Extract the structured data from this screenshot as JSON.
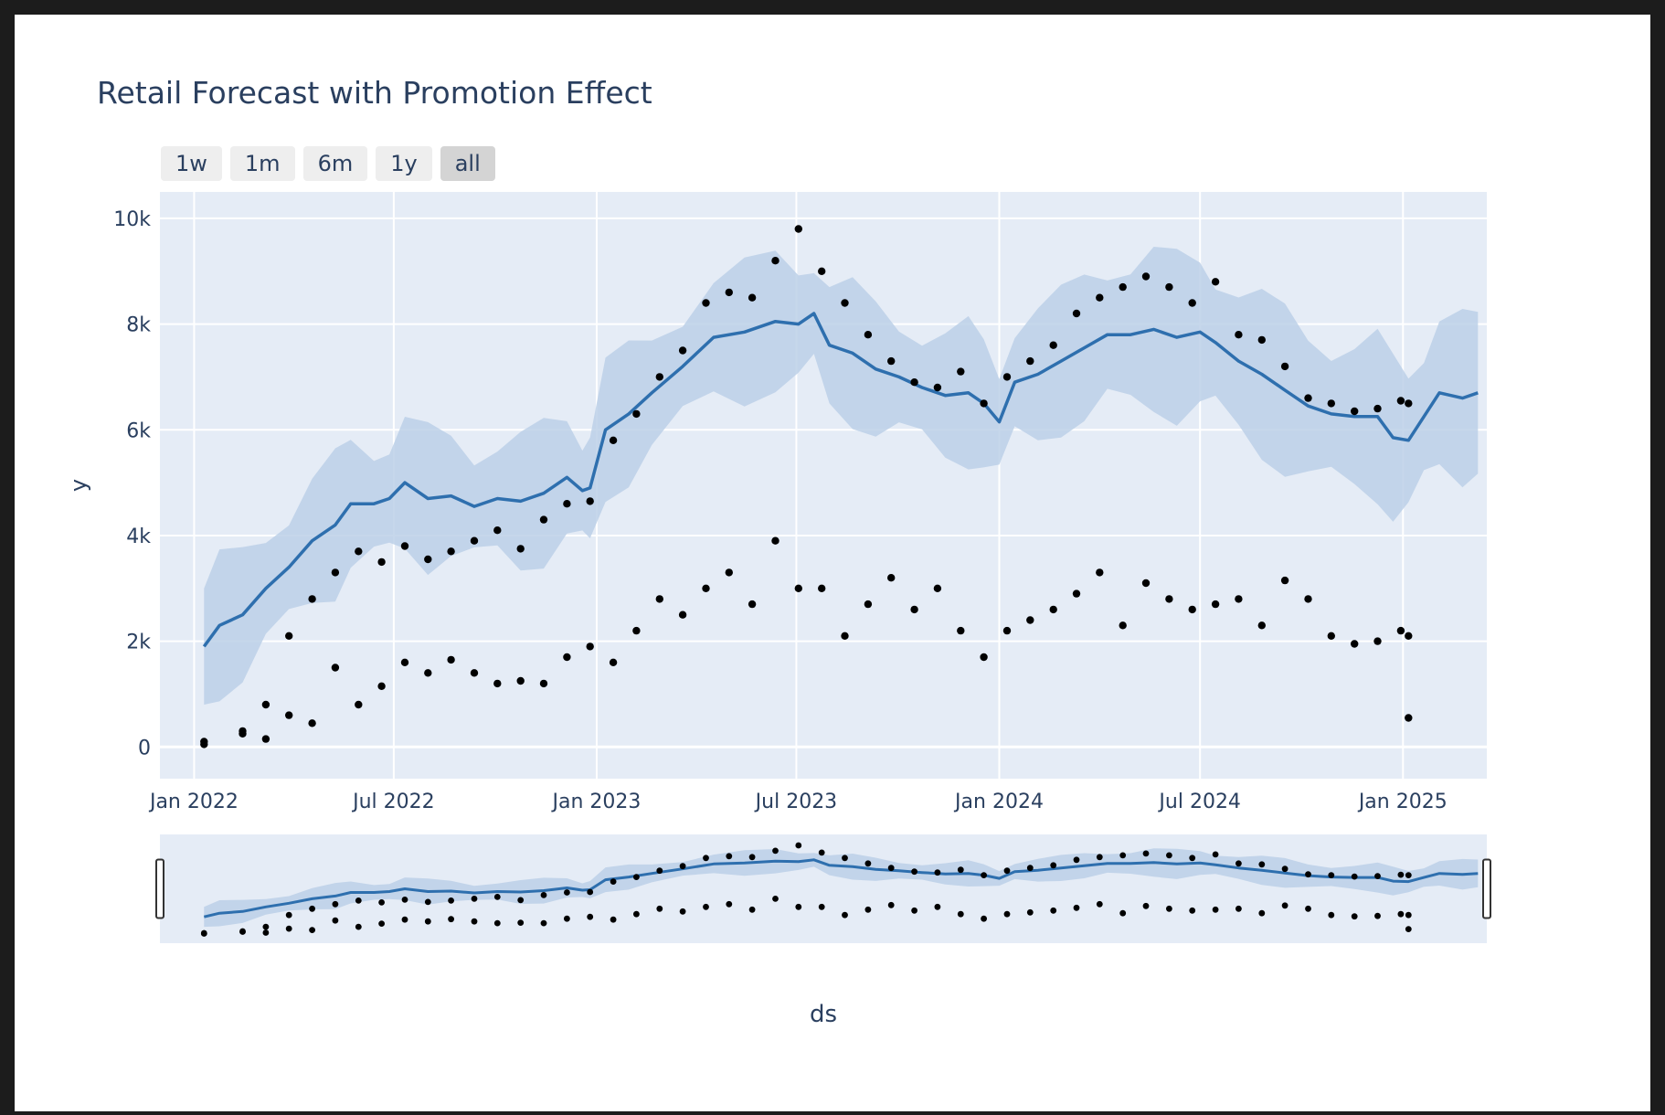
{
  "chart_data": {
    "type": "scatter",
    "title": "Retail Forecast with Promotion Effect",
    "xlabel": "ds",
    "ylabel": "y",
    "xlim": [
      "2021-12-01",
      "2025-03-18"
    ],
    "ylim": [
      -600,
      10500
    ],
    "x_ticks": [
      "2022-01-01",
      "2022-07-01",
      "2023-01-01",
      "2023-07-01",
      "2024-01-01",
      "2024-07-01",
      "2025-01-01"
    ],
    "x_tick_labels": [
      "Jan 2022",
      "Jul 2022",
      "Jan 2023",
      "Jul 2023",
      "Jan 2024",
      "Jul 2024",
      "Jan 2025"
    ],
    "y_ticks": [
      0,
      2000,
      4000,
      6000,
      8000,
      10000
    ],
    "y_tick_labels": [
      "0",
      "2k",
      "4k",
      "6k",
      "8k",
      "10k"
    ],
    "grid": true,
    "range_selector": [
      "1w",
      "1m",
      "6m",
      "1y",
      "all"
    ],
    "range_selector_active": "all",
    "range_slider": true,
    "colors": {
      "plot_bg": "#e5ecf6",
      "forecast_line": "#2e6fae",
      "uncertainty_band": "#bcd0e7",
      "actual_points": "#000000",
      "text": "#2a3f5f"
    },
    "series": [
      {
        "type": "line",
        "x": [
          "2022-01-10",
          "2022-01-24",
          "2022-02-14",
          "2022-03-07",
          "2022-03-28",
          "2022-04-18",
          "2022-05-09",
          "2022-05-23",
          "2022-06-13",
          "2022-06-27",
          "2022-07-11",
          "2022-08-01",
          "2022-08-22",
          "2022-09-12",
          "2022-10-03",
          "2022-10-24",
          "2022-11-14",
          "2022-12-05",
          "2022-12-19",
          "2022-12-26",
          "2023-01-09",
          "2023-01-30",
          "2023-02-20",
          "2023-03-20",
          "2023-04-17",
          "2023-05-15",
          "2023-06-12",
          "2023-07-03",
          "2023-07-17",
          "2023-07-31",
          "2023-08-21",
          "2023-09-11",
          "2023-10-02",
          "2023-10-23",
          "2023-11-13",
          "2023-12-04",
          "2023-12-18",
          "2024-01-01",
          "2024-01-15",
          "2024-02-05",
          "2024-02-26",
          "2024-03-18",
          "2024-04-08",
          "2024-04-29",
          "2024-05-20",
          "2024-06-10",
          "2024-07-01",
          "2024-07-15",
          "2024-08-05",
          "2024-08-26",
          "2024-09-16",
          "2024-10-07",
          "2024-10-28",
          "2024-11-18",
          "2024-12-09",
          "2024-12-23",
          "2025-01-06",
          "2025-01-20",
          "2025-02-03",
          "2025-02-24",
          "2025-03-10"
        ],
        "y": [
          1900,
          2300,
          2500,
          3000,
          3400,
          3900,
          4200,
          4600,
          4600,
          4700,
          5000,
          4700,
          4750,
          4550,
          4700,
          4650,
          4800,
          5100,
          4850,
          4900,
          6000,
          6300,
          6700,
          7200,
          7750,
          7850,
          8050,
          8000,
          8200,
          7600,
          7450,
          7150,
          7000,
          6800,
          6650,
          6700,
          6500,
          6150,
          6900,
          7050,
          7300,
          7550,
          7800,
          7800,
          7900,
          7750,
          7850,
          7650,
          7300,
          7050,
          6750,
          6450,
          6300,
          6250,
          6250,
          5850,
          5800,
          6250,
          6700,
          6600,
          6700
        ]
      },
      {
        "type": "scatter",
        "x": [
          "2022-01-10",
          "2022-02-14",
          "2022-03-07",
          "2022-03-28",
          "2022-04-18",
          "2022-05-09",
          "2022-05-30",
          "2022-06-20",
          "2022-07-11",
          "2022-08-01",
          "2022-08-22",
          "2022-09-12",
          "2022-10-03",
          "2022-10-24",
          "2022-11-14",
          "2022-12-05",
          "2022-12-26",
          "2023-01-16",
          "2023-02-06",
          "2023-02-27",
          "2023-03-20",
          "2023-04-10",
          "2023-05-01",
          "2023-05-22",
          "2023-06-12",
          "2023-07-03",
          "2023-07-24",
          "2023-08-14",
          "2023-09-04",
          "2023-09-25",
          "2023-10-16",
          "2023-11-06",
          "2023-11-27",
          "2023-12-18",
          "2024-01-08",
          "2024-01-29",
          "2024-02-19",
          "2024-03-11",
          "2024-04-01",
          "2024-04-22",
          "2024-05-13",
          "2024-06-03",
          "2024-06-24",
          "2024-07-15",
          "2024-08-05",
          "2024-08-26",
          "2024-09-16",
          "2024-10-07",
          "2024-10-28",
          "2024-11-18",
          "2024-12-09",
          "2024-12-30",
          "2025-01-06"
        ],
        "y": [
          100,
          300,
          800,
          2100,
          2800,
          3300,
          3700,
          3500,
          3800,
          3550,
          3700,
          3900,
          4100,
          3750,
          4300,
          4600,
          4650,
          5800,
          6300,
          7000,
          7500,
          8400,
          8600,
          8500,
          9200,
          9800,
          9000,
          8400,
          7800,
          7300,
          6900,
          6800,
          7100,
          6500,
          7000,
          7300,
          7600,
          8200,
          8500,
          8700,
          8900,
          8700,
          8400,
          8800,
          7800,
          7700,
          7200,
          6600,
          6500,
          6350,
          6400,
          6550,
          6500
        ]
      },
      {
        "type": "scatter",
        "x": [
          "2022-01-10",
          "2022-02-14",
          "2022-03-07",
          "2022-03-28",
          "2022-04-18",
          "2022-05-09",
          "2022-05-30",
          "2022-06-20",
          "2022-07-11",
          "2022-08-01",
          "2022-08-22",
          "2022-09-12",
          "2022-10-03",
          "2022-10-24",
          "2022-11-14",
          "2022-12-05",
          "2022-12-26",
          "2023-01-16",
          "2023-02-06",
          "2023-02-27",
          "2023-03-20",
          "2023-04-10",
          "2023-05-01",
          "2023-05-22",
          "2023-06-12",
          "2023-07-03",
          "2023-07-24",
          "2023-08-14",
          "2023-09-04",
          "2023-09-25",
          "2023-10-16",
          "2023-11-06",
          "2023-11-27",
          "2023-12-18",
          "2024-01-08",
          "2024-01-29",
          "2024-02-19",
          "2024-03-11",
          "2024-04-01",
          "2024-04-22",
          "2024-05-13",
          "2024-06-03",
          "2024-06-24",
          "2024-07-15",
          "2024-08-05",
          "2024-08-26",
          "2024-09-16",
          "2024-10-07",
          "2024-10-28",
          "2024-11-18",
          "2024-12-09",
          "2024-12-30",
          "2025-01-06"
        ],
        "y": [
          50,
          250,
          150,
          600,
          450,
          1500,
          800,
          1150,
          1600,
          1400,
          1650,
          1400,
          1200,
          1250,
          1200,
          1700,
          1900,
          1600,
          2200,
          2800,
          2500,
          3000,
          3300,
          2700,
          3900,
          3000,
          3000,
          2100,
          2700,
          3200,
          2600,
          3000,
          2200,
          1700,
          2200,
          2400,
          2600,
          2900,
          3300,
          2300,
          3100,
          2800,
          2600,
          2700,
          2800,
          2300,
          3150,
          2800,
          2100,
          1950,
          2000,
          2200,
          2100
        ]
      },
      {
        "type": "scatter",
        "x": [
          "2025-01-06"
        ],
        "y": [
          550
        ]
      }
    ]
  }
}
